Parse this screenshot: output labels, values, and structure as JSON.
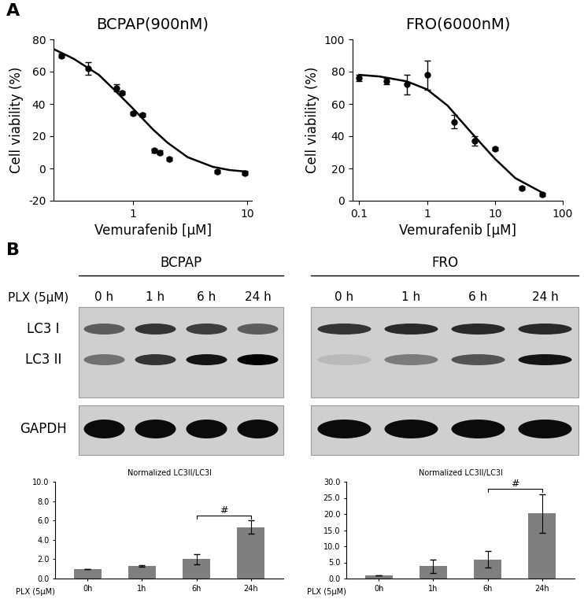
{
  "panel_labels": [
    "A",
    "B"
  ],
  "chart_data": [
    {
      "type": "scatter",
      "title": "BCPAP(900nM)",
      "x_label": "Vemurafenib [µM]",
      "y_label": "Cell viability (%)",
      "log": "x",
      "color": "#000000",
      "marker": "circle",
      "grid": false,
      "x": [
        0.235,
        0.405,
        0.71,
        0.8,
        1.0,
        1.2,
        1.52,
        1.72,
        2.08,
        5.5,
        9.5
      ],
      "values": [
        70,
        62,
        50,
        47,
        34,
        33,
        11,
        10,
        6,
        -2,
        -3
      ],
      "errors": [
        1,
        4,
        2,
        1,
        1,
        1,
        1,
        1,
        1,
        1,
        1
      ],
      "curve": {
        "x": [
          0.2,
          0.3,
          0.5,
          0.7,
          1,
          1.5,
          2,
          3,
          5,
          7,
          10
        ],
        "values": [
          74,
          68,
          58,
          48,
          37,
          24,
          16,
          7,
          1,
          -1,
          -2
        ]
      },
      "xlim": [
        0.2,
        11
      ],
      "ylim": [
        -20,
        80
      ],
      "xticks": [
        1,
        10
      ],
      "yticks": [
        -20,
        0,
        20,
        40,
        60,
        80
      ]
    },
    {
      "type": "scatter",
      "title": "FRO(6000nM)",
      "x_label": "Vemurafenib [µM]",
      "y_label": "Cell viability (%)",
      "log": "x",
      "color": "#000000",
      "marker": "circle",
      "grid": false,
      "x": [
        0.1,
        0.25,
        0.5,
        1,
        2.5,
        5,
        10,
        25,
        50
      ],
      "values": [
        76,
        74,
        72,
        78,
        49,
        37,
        32,
        8,
        4
      ],
      "errors": [
        2,
        2,
        6,
        9,
        4,
        3,
        1,
        1,
        1
      ],
      "curve": {
        "x": [
          0.1,
          0.2,
          0.5,
          1,
          2,
          5,
          10,
          20,
          50
        ],
        "values": [
          78,
          77,
          74,
          69,
          59,
          40,
          26,
          14,
          5
        ]
      },
      "xlim": [
        0.08,
        100
      ],
      "ylim": [
        0,
        100
      ],
      "xticks": [
        0.1,
        1,
        10,
        100
      ],
      "yticks": [
        0,
        20,
        40,
        60,
        80,
        100
      ]
    },
    {
      "type": "bar",
      "title": "Normalized LC3II/LC3I",
      "x_label": "PLX (5µM)",
      "color": "#7f7f7f",
      "grid": false,
      "categories": [
        "0h",
        "1h",
        "6h",
        "24h"
      ],
      "values": [
        1.0,
        1.3,
        2.0,
        5.3
      ],
      "errors": [
        0.0,
        0.1,
        0.5,
        0.7
      ],
      "ylim": [
        0,
        10
      ],
      "yticks": [
        {
          "value": 0,
          "label": "0.0"
        },
        {
          "value": 2,
          "label": "2.0"
        },
        {
          "value": 4,
          "label": "4.0"
        },
        {
          "value": 6,
          "label": "6.0"
        },
        {
          "value": 8,
          "label": "8.0"
        },
        {
          "value": 10,
          "label": "10.0"
        }
      ],
      "annotations": [
        {
          "text": "#",
          "from": "6h",
          "to": "24h"
        }
      ]
    },
    {
      "type": "bar",
      "title": "Normalized LC3II/LC3I",
      "x_label": "PLX (5µM)",
      "color": "#7f7f7f",
      "grid": false,
      "categories": [
        "0h",
        "1h",
        "6h",
        "24h"
      ],
      "values": [
        1.0,
        3.8,
        5.9,
        20.2
      ],
      "errors": [
        0.0,
        2.0,
        2.6,
        6.0
      ],
      "ylim": [
        0,
        30
      ],
      "yticks": [
        {
          "value": 0,
          "label": "0.0"
        },
        {
          "value": 5,
          "label": "5.0"
        },
        {
          "value": 10,
          "label": "10.0"
        },
        {
          "value": 15,
          "label": "15.0"
        },
        {
          "value": 20,
          "label": "20.0"
        },
        {
          "value": 25,
          "label": "25.0"
        },
        {
          "value": 30,
          "label": "30.0"
        }
      ],
      "annotations": [
        {
          "text": "#",
          "from": "6h",
          "to": "24h"
        }
      ]
    }
  ],
  "blots": {
    "treatment": "PLX (5µM)",
    "lanes": [
      "0 h",
      "1 h",
      "6 h",
      "24 h"
    ],
    "bands": [
      "LC3 I",
      "LC3 II",
      "GAPDH"
    ],
    "items": [
      {
        "cell_line": "BCPAP",
        "intensity": [
          [
            0.55,
            0.75,
            0.7,
            0.55
          ],
          [
            0.45,
            0.75,
            0.9,
            1.0
          ],
          [
            0.95,
            0.95,
            0.95,
            0.95
          ]
        ]
      },
      {
        "cell_line": "FRO",
        "intensity": [
          [
            0.75,
            0.8,
            0.8,
            0.8
          ],
          [
            0.1,
            0.4,
            0.6,
            0.9
          ],
          [
            0.95,
            0.95,
            0.95,
            0.95
          ]
        ]
      }
    ]
  }
}
